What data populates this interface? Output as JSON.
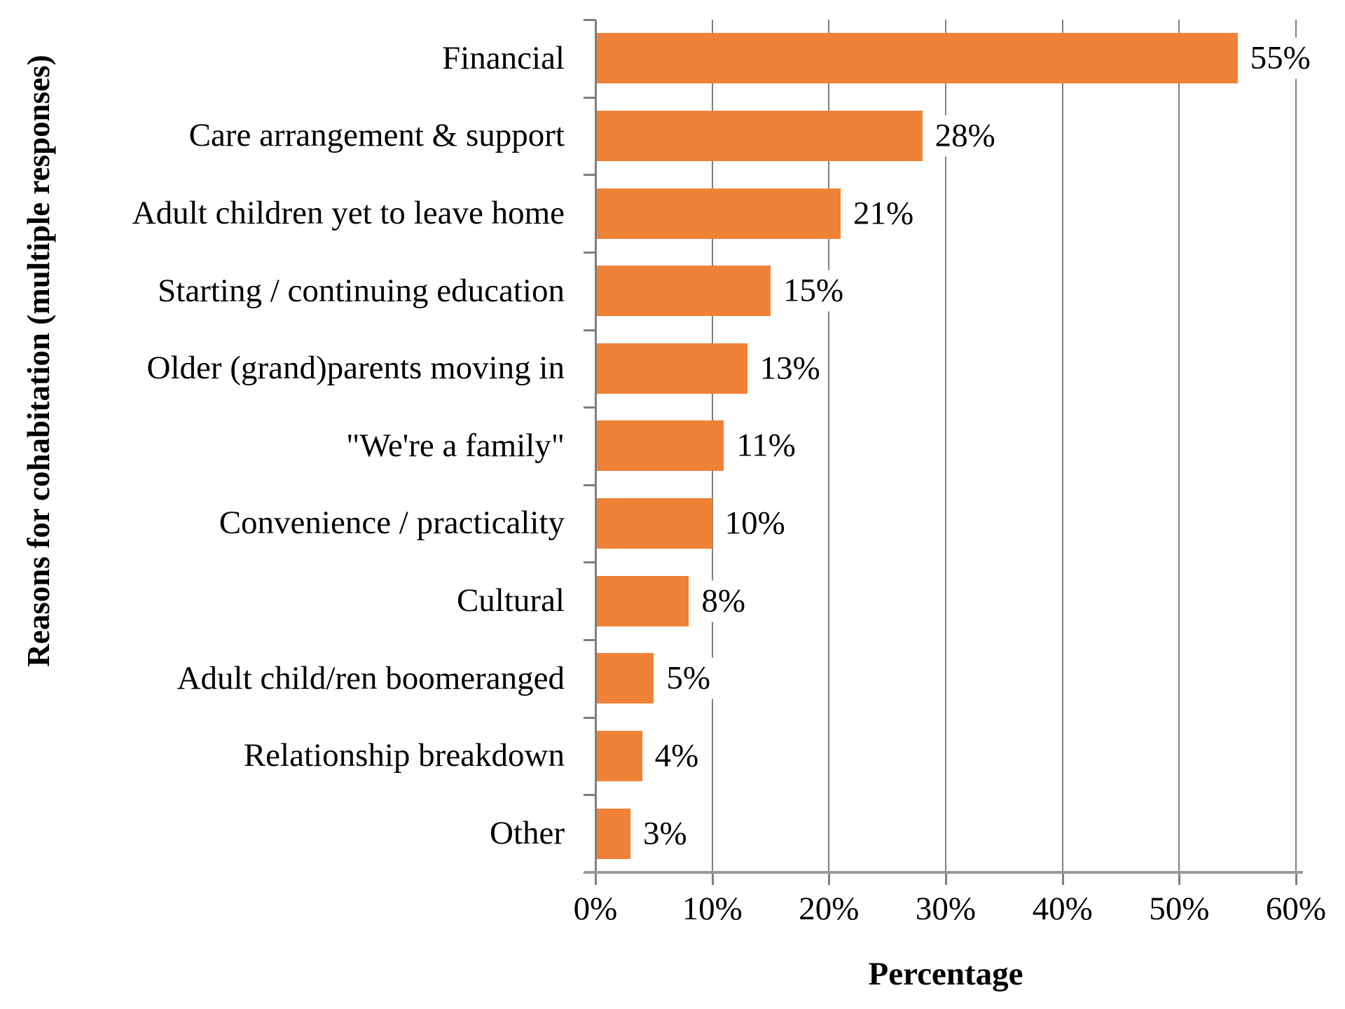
{
  "chart_data": {
    "type": "bar",
    "orientation": "horizontal",
    "title": "",
    "xlabel": "Percentage",
    "ylabel": "Reasons for cohabitation (multiple responses)",
    "categories": [
      "Financial",
      "Care arrangement & support",
      "Adult children yet to leave home",
      "Starting / continuing education",
      "Older (grand)parents moving in",
      "\"We're a family\"",
      "Convenience / practicality",
      "Cultural",
      "Adult child/ren boomeranged",
      "Relationship breakdown",
      "Other"
    ],
    "values": [
      55,
      28,
      21,
      15,
      13,
      11,
      10,
      8,
      5,
      4,
      3
    ],
    "value_labels": [
      "55%",
      "28%",
      "21%",
      "15%",
      "13%",
      "11%",
      "10%",
      "8%",
      "5%",
      "4%",
      "3%"
    ],
    "x_ticks": [
      {
        "value": 0,
        "label": "0%"
      },
      {
        "value": 10,
        "label": "10%"
      },
      {
        "value": 20,
        "label": "20%"
      },
      {
        "value": 30,
        "label": "30%"
      },
      {
        "value": 40,
        "label": "40%"
      },
      {
        "value": 50,
        "label": "50%"
      },
      {
        "value": 60,
        "label": "60%"
      }
    ],
    "xlim": [
      0,
      60
    ],
    "grid": true,
    "legend": false,
    "value_label_position": "outside-end",
    "colors": {
      "bar": "#ef8236",
      "gridline": "#7f7f7f",
      "axis": "#9a9a9a",
      "text": "#000000",
      "background": "#ffffff"
    }
  }
}
